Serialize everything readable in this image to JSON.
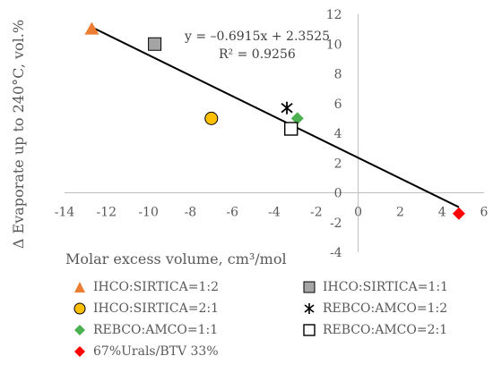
{
  "chart_data": {
    "type": "scatter",
    "xlabel": "Molar excess volume, cm³/mol",
    "ylabel": "Δ Evaporate up to 240°C, vol.%",
    "xlim": [
      -14,
      6
    ],
    "ylim": [
      -4,
      12
    ],
    "xticks": [
      -14,
      -12,
      -10,
      -8,
      -6,
      -4,
      -2,
      0,
      2,
      4,
      6
    ],
    "yticks": [
      -4,
      -2,
      0,
      2,
      4,
      6,
      8,
      10,
      12
    ],
    "grid": false,
    "legend_position": "bottom",
    "series": [
      {
        "name": "IHCO:SIRTICA=1:2",
        "marker": "triangle",
        "color": "#ED7D31",
        "x": [
          -12.7
        ],
        "y": [
          11.0
        ]
      },
      {
        "name": "IHCO:SIRTICA=1:1",
        "marker": "square",
        "color": "#A5A5A5",
        "x": [
          -9.7
        ],
        "y": [
          10.0
        ]
      },
      {
        "name": "IHCO:SIRTICA=2:1",
        "marker": "circle",
        "color": "#FFC000",
        "x": [
          -7.0
        ],
        "y": [
          5.0
        ]
      },
      {
        "name": "REBCO:AMCO=1:2",
        "marker": "asterisk",
        "color": "#000000",
        "x": [
          -3.4
        ],
        "y": [
          5.7
        ]
      },
      {
        "name": "REBCO:AMCO=1:1",
        "marker": "diamond",
        "color": "#4CAF50",
        "x": [
          -2.9
        ],
        "y": [
          5.0
        ]
      },
      {
        "name": "REBCO:AMCO=2:1",
        "marker": "open-square",
        "color": "#000000",
        "x": [
          -3.2
        ],
        "y": [
          4.3
        ]
      },
      {
        "name": "67%Urals/BTV 33%",
        "marker": "diamond",
        "color": "#FF0000",
        "x": [
          4.8
        ],
        "y": [
          -1.4
        ]
      }
    ],
    "trendline": {
      "slope": -0.6915,
      "intercept": 2.3525,
      "x_range": [
        -12.7,
        4.8
      ],
      "equation": "y = –0.6915x + 2.3525",
      "r2": "R² = 0.9256"
    }
  }
}
